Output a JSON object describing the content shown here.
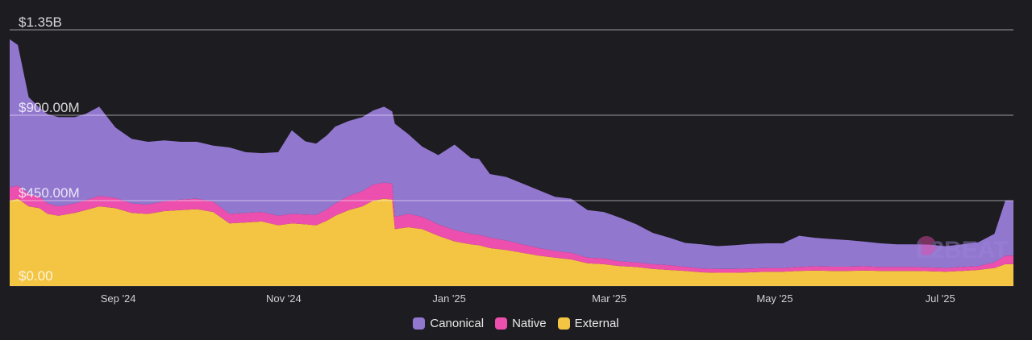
{
  "chart_data": {
    "type": "area",
    "stacked": true,
    "y_unit": "USD",
    "ylim": [
      0,
      1350000000
    ],
    "y_ticks": [
      {
        "value": 0,
        "label": "$0.00"
      },
      {
        "value": 450000000,
        "label": "$450.00M"
      },
      {
        "value": 900000000,
        "label": "$900.00M"
      },
      {
        "value": 1350000000,
        "label": "$1.35B"
      }
    ],
    "x_range": [
      "2024-07-23",
      "2025-07-28"
    ],
    "x_ticks": [
      {
        "date": "2024-09-01",
        "label": "Sep '24"
      },
      {
        "date": "2024-11-01",
        "label": "Nov '24"
      },
      {
        "date": "2025-01-01",
        "label": "Jan '25"
      },
      {
        "date": "2025-03-01",
        "label": "Mar '25"
      },
      {
        "date": "2025-05-01",
        "label": "May '25"
      },
      {
        "date": "2025-07-01",
        "label": "Jul '25"
      }
    ],
    "grid": true,
    "legend_position": "bottom-center",
    "x": [
      "2024-07-23",
      "2024-07-26",
      "2024-07-30",
      "2024-08-03",
      "2024-08-06",
      "2024-08-10",
      "2024-08-16",
      "2024-08-20",
      "2024-08-25",
      "2024-08-31",
      "2024-09-06",
      "2024-09-12",
      "2024-09-18",
      "2024-09-24",
      "2024-09-30",
      "2024-10-06",
      "2024-10-12",
      "2024-10-18",
      "2024-10-24",
      "2024-10-30",
      "2024-11-04",
      "2024-11-09",
      "2024-11-13",
      "2024-11-17",
      "2024-11-20",
      "2024-11-25",
      "2024-11-30",
      "2024-12-04",
      "2024-12-08",
      "2024-12-11",
      "2024-12-12",
      "2024-12-17",
      "2024-12-22",
      "2024-12-28",
      "2025-01-03",
      "2025-01-09",
      "2025-01-12",
      "2025-01-16",
      "2025-01-22",
      "2025-01-28",
      "2025-02-03",
      "2025-02-09",
      "2025-02-15",
      "2025-02-21",
      "2025-02-27",
      "2025-03-05",
      "2025-03-11",
      "2025-03-17",
      "2025-03-23",
      "2025-03-29",
      "2025-04-04",
      "2025-04-10",
      "2025-04-16",
      "2025-04-22",
      "2025-04-28",
      "2025-05-04",
      "2025-05-10",
      "2025-05-16",
      "2025-05-22",
      "2025-05-28",
      "2025-06-03",
      "2025-06-09",
      "2025-06-15",
      "2025-06-21",
      "2025-06-27",
      "2025-07-03",
      "2025-07-09",
      "2025-07-15",
      "2025-07-21",
      "2025-07-25",
      "2025-07-28"
    ],
    "series": [
      {
        "name": "External",
        "color": "#f4c542",
        "values": [
          450,
          460,
          420,
          410,
          380,
          370,
          385,
          400,
          420,
          410,
          385,
          380,
          395,
          400,
          405,
          390,
          330,
          335,
          340,
          320,
          330,
          325,
          320,
          345,
          370,
          400,
          420,
          450,
          460,
          455,
          300,
          310,
          300,
          265,
          235,
          220,
          215,
          200,
          190,
          175,
          160,
          150,
          140,
          120,
          115,
          105,
          100,
          90,
          85,
          80,
          72,
          70,
          70,
          72,
          75,
          75,
          80,
          82,
          80,
          80,
          82,
          80,
          80,
          80,
          78,
          75,
          80,
          85,
          95,
          115,
          115
        ]
      },
      {
        "name": "Native",
        "color": "#ec4fad",
        "values": [
          70,
          70,
          65,
          60,
          55,
          50,
          50,
          52,
          55,
          55,
          50,
          50,
          52,
          55,
          55,
          55,
          50,
          50,
          50,
          50,
          50,
          52,
          55,
          60,
          65,
          75,
          80,
          85,
          85,
          85,
          65,
          70,
          65,
          60,
          60,
          55,
          55,
          55,
          50,
          45,
          40,
          35,
          35,
          30,
          30,
          25,
          25,
          25,
          25,
          22,
          20,
          20,
          20,
          20,
          20,
          20,
          20,
          22,
          22,
          22,
          22,
          20,
          20,
          20,
          20,
          20,
          20,
          20,
          30,
          45,
          45
        ]
      },
      {
        "name": "Canonical",
        "color": "#9277cf",
        "values": [
          780,
          740,
          510,
          470,
          470,
          470,
          455,
          455,
          470,
          370,
          340,
          330,
          320,
          305,
          300,
          295,
          350,
          320,
          310,
          335,
          440,
          385,
          375,
          390,
          405,
          395,
          390,
          390,
          400,
          380,
          490,
          420,
          370,
          365,
          450,
          400,
          400,
          335,
          335,
          320,
          305,
          285,
          285,
          250,
          245,
          230,
          200,
          165,
          145,
          125,
          128,
          120,
          125,
          130,
          130,
          130,
          165,
          150,
          145,
          140,
          130,
          125,
          120,
          120,
          120,
          115,
          120,
          125,
          150,
          290,
          290
        ]
      }
    ]
  },
  "legend": {
    "items": [
      {
        "label": "Canonical",
        "color": "#9277cf"
      },
      {
        "label": "Native",
        "color": "#ec4fad"
      },
      {
        "label": "External",
        "color": "#f4c542"
      }
    ]
  },
  "watermark": {
    "text": "L2BEAT"
  }
}
